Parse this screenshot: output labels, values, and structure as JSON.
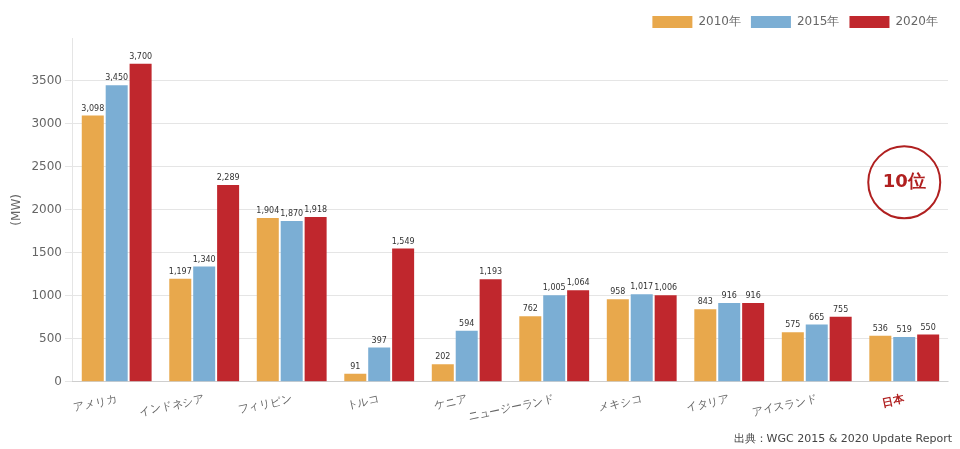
{
  "chart_data": {
    "type": "bar",
    "categories": [
      "アメリカ",
      "インドネシア",
      "フィリピン",
      "トルコ",
      "ケニア",
      "ニュージーランド",
      "メキシコ",
      "イタリア",
      "アイスランド",
      "日本"
    ],
    "series": [
      {
        "name": "2010年",
        "color": "#E8A84C",
        "values": [
          3098,
          1197,
          1904,
          91,
          202,
          762,
          958,
          843,
          575,
          536
        ],
        "value_labels": [
          "3,098",
          "1,197",
          "1,904",
          "91",
          "202",
          "762",
          "958",
          "843",
          "575",
          "536"
        ]
      },
      {
        "name": "2015年",
        "color": "#7BAED4",
        "values": [
          3450,
          1340,
          1870,
          397,
          594,
          1005,
          1017,
          916,
          665,
          519
        ],
        "value_labels": [
          "3,450",
          "1,340",
          "1,870",
          "397",
          "594",
          "1,005",
          "1,017",
          "916",
          "665",
          "519"
        ]
      },
      {
        "name": "2020年",
        "color": "#C0272D",
        "values": [
          3700,
          2289,
          1918,
          1549,
          1193,
          1064,
          1006,
          916,
          755,
          550
        ],
        "value_labels": [
          "3,700",
          "2,289",
          "1,918",
          "1,549",
          "1,193",
          "1,064",
          "1,006",
          "916",
          "755",
          "550"
        ]
      }
    ],
    "ylabel": "(MW)",
    "ylim": [
      0,
      4000
    ],
    "yticks": [
      0,
      500,
      1000,
      1500,
      2000,
      2500,
      3000,
      3500
    ],
    "grid": true,
    "legend": "upper right",
    "data_labels": true,
    "annotations": [
      "10位",
      "出典：WGC 2015 & 2020 Update Report"
    ]
  }
}
